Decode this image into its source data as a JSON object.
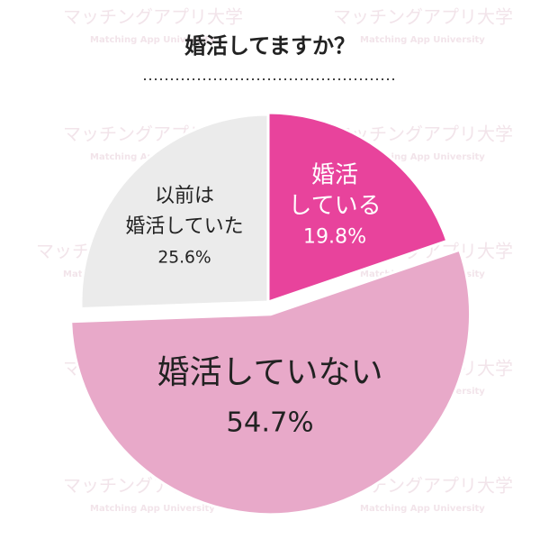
{
  "chart_data": {
    "type": "pie",
    "title": "婚活してますか？",
    "categories": [
      [
        "婚活",
        "している"
      ],
      [
        "婚活していない"
      ],
      [
        "以前は",
        "婚活していた"
      ]
    ],
    "values": [
      19.8,
      54.7,
      25.6
    ],
    "value_labels": [
      "19.8%",
      "54.7%",
      "25.6%"
    ],
    "colors": [
      "#e8439c",
      "#e8a9c9",
      "#ebebeb"
    ],
    "watermark": {
      "text": "マッチングアプリ大学",
      "subtext": "Matching App University"
    }
  }
}
